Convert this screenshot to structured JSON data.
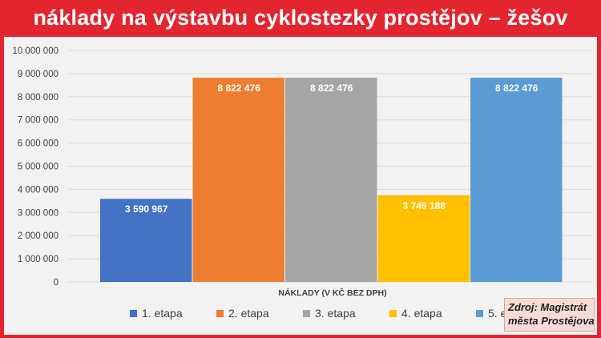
{
  "title": "náklady na výstavbu cyklostezky prostějov – žešov",
  "source": {
    "line1": "Zdroj: Magistrát",
    "line2": "města Prostějova"
  },
  "colors": {
    "frame": "#e3252f",
    "background": "#f2f2f2",
    "grid": "#d9d9d9"
  },
  "chart_data": {
    "type": "bar",
    "xlabel": "NÁKLADY (V KČ BEZ DPH)",
    "ylabel": "",
    "ylim": [
      0,
      10000000
    ],
    "yticks": [
      "0",
      "1 000 000",
      "2 000 000",
      "3 000 000",
      "4 000 000",
      "5 000 000",
      "6 000 000",
      "7 000 000",
      "8 000 000",
      "9 000 000",
      "10 000 000"
    ],
    "ytick_values": [
      0,
      1000000,
      2000000,
      3000000,
      4000000,
      5000000,
      6000000,
      7000000,
      8000000,
      9000000,
      10000000
    ],
    "grid": true,
    "legend_position": "bottom",
    "series": [
      {
        "name": "1. etapa",
        "values": [
          3590967
        ],
        "label": "3 590 967",
        "color": "#4472c4"
      },
      {
        "name": "2. etapa",
        "values": [
          8822476
        ],
        "label": "8 822 476",
        "color": "#ed7d31"
      },
      {
        "name": "3. etapa",
        "values": [
          8822476
        ],
        "label": "8 822 476",
        "color": "#a5a5a5"
      },
      {
        "name": "4. etapa",
        "values": [
          3745188
        ],
        "label": "3 745 188",
        "color": "#ffc000"
      },
      {
        "name": "5. etapa",
        "values": [
          8822476
        ],
        "label": "8 822 476",
        "color": "#5b9bd5"
      }
    ]
  }
}
